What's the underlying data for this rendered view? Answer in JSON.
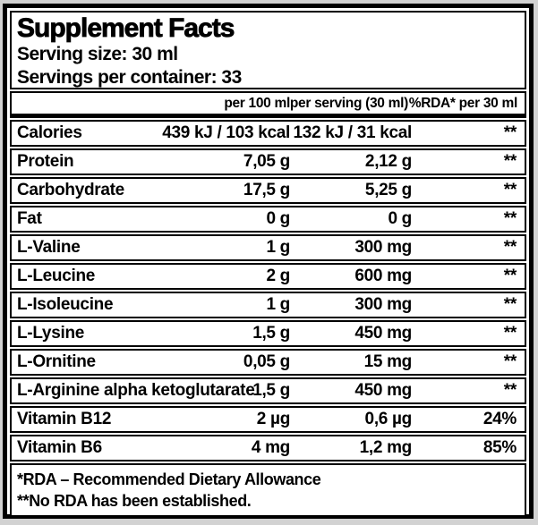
{
  "colors": {
    "background": "#d2d2d2",
    "label_bg": "#ffffff",
    "border": "#000000",
    "text": "#000000"
  },
  "header": {
    "title": "Supplement Facts",
    "serving_size": "Serving size: 30 ml",
    "servings_per_container": "Servings per container: 33"
  },
  "columns": [
    "per 100 ml",
    "per serving (30 ml)",
    "%RDA* per 30 ml"
  ],
  "rows": [
    {
      "name": "Calories",
      "per_100ml": "439 kJ / 103 kcal",
      "per_serving": "132 kJ / 31 kcal",
      "rda": "**"
    },
    {
      "name": "Protein",
      "per_100ml": "7,05 g",
      "per_serving": "2,12 g",
      "rda": "**"
    },
    {
      "name": "Carbohydrate",
      "per_100ml": "17,5 g",
      "per_serving": "5,25 g",
      "rda": "**"
    },
    {
      "name": "Fat",
      "per_100ml": "0 g",
      "per_serving": "0 g",
      "rda": "**"
    },
    {
      "name": "L-Valine",
      "per_100ml": "1 g",
      "per_serving": "300 mg",
      "rda": "**"
    },
    {
      "name": "L-Leucine",
      "per_100ml": "2 g",
      "per_serving": "600 mg",
      "rda": "**"
    },
    {
      "name": "L-Isoleucine",
      "per_100ml": "1 g",
      "per_serving": "300 mg",
      "rda": "**"
    },
    {
      "name": "L-Lysine",
      "per_100ml": "1,5 g",
      "per_serving": "450 mg",
      "rda": "**"
    },
    {
      "name": "L-Ornitine",
      "per_100ml": "0,05 g",
      "per_serving": "15 mg",
      "rda": "**"
    },
    {
      "name": "L-Arginine alpha ketoglutarate",
      "per_100ml": "1,5 g",
      "per_serving": "450 mg",
      "rda": "**"
    },
    {
      "name": "Vitamin B12",
      "per_100ml": "2 µg",
      "per_serving": "0,6 µg",
      "rda": "24%"
    },
    {
      "name": "Vitamin B6",
      "per_100ml": "4 mg",
      "per_serving": "1,2 mg",
      "rda": "85%"
    }
  ],
  "footnotes": [
    "*RDA – Recommended Dietary Allowance",
    "**No RDA has been established."
  ]
}
